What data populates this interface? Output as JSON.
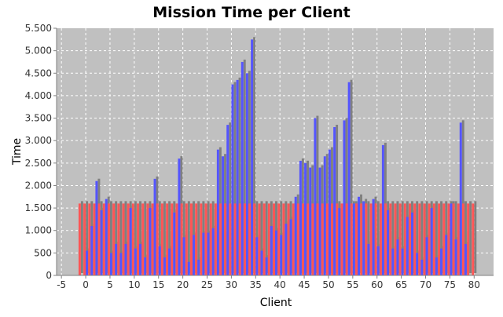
{
  "chart_data": {
    "type": "bar",
    "title": "Mission Time per Client",
    "xlabel": "Client",
    "ylabel": "Time",
    "x_range": [
      -6,
      84
    ],
    "ylim": [
      0,
      5500
    ],
    "x_ticks": [
      -5,
      0,
      5,
      10,
      15,
      20,
      25,
      30,
      35,
      40,
      45,
      50,
      55,
      60,
      65,
      70,
      75,
      80
    ],
    "x_tick_labels": [
      "-5",
      "0",
      "5",
      "10",
      "15",
      "20",
      "25",
      "30",
      "35",
      "40",
      "45",
      "50",
      "55",
      "60",
      "65",
      "70",
      "75",
      "80"
    ],
    "y_ticks": [
      0,
      500,
      1000,
      1500,
      2000,
      2500,
      3000,
      3500,
      4000,
      4500,
      5000,
      5500
    ],
    "y_tick_labels": [
      "0",
      "500",
      "1.000",
      "1.500",
      "2.000",
      "2.500",
      "3.000",
      "3.500",
      "4.000",
      "4.500",
      "5.000",
      "5.500"
    ],
    "grid": true,
    "legend": "none",
    "colors": {
      "plot_bg": "#c0c0c0",
      "series_red": "#ff5555",
      "series_blue": "#5555ff",
      "shadow": "#808080",
      "grid": "#ffffff"
    },
    "x": [
      -1,
      0,
      1,
      2,
      3,
      4,
      5,
      6,
      7,
      8,
      9,
      10,
      11,
      12,
      13,
      14,
      15,
      16,
      17,
      18,
      19,
      20,
      21,
      22,
      23,
      24,
      25,
      26,
      27,
      28,
      29,
      30,
      31,
      32,
      33,
      34,
      35,
      36,
      37,
      38,
      39,
      40,
      41,
      42,
      43,
      44,
      45,
      46,
      47,
      48,
      49,
      50,
      51,
      52,
      53,
      54,
      55,
      56,
      57,
      58,
      59,
      60,
      61,
      62,
      63,
      64,
      65,
      66,
      67,
      68,
      69,
      70,
      71,
      72,
      73,
      74,
      75,
      76,
      77,
      78,
      79,
      80
    ],
    "series": [
      {
        "color": "#ff5555",
        "values": [
          1600,
          1600,
          1600,
          1600,
          1600,
          1600,
          1600,
          1600,
          1600,
          1600,
          1600,
          1600,
          1600,
          1600,
          1600,
          1600,
          1600,
          1600,
          1600,
          1600,
          1600,
          1600,
          1600,
          1600,
          1600,
          1600,
          1600,
          1600,
          1600,
          1600,
          1600,
          1600,
          1600,
          1600,
          1600,
          1600,
          1600,
          1600,
          1600,
          1600,
          1600,
          1600,
          1600,
          1600,
          1600,
          1600,
          1600,
          1600,
          1600,
          1600,
          1600,
          1600,
          1600,
          1600,
          1600,
          1600,
          1600,
          1600,
          1600,
          1600,
          1600,
          1600,
          1600,
          1600,
          1600,
          1600,
          1600,
          1600,
          1600,
          1600,
          1600,
          1600,
          1600,
          1600,
          1600,
          1600,
          1600,
          1600,
          1600,
          1600,
          1600,
          1600
        ]
      },
      {
        "color": "#5555ff",
        "values": [
          0,
          550,
          1100,
          2100,
          1450,
          1700,
          500,
          700,
          500,
          700,
          1500,
          600,
          700,
          400,
          1500,
          2150,
          650,
          400,
          600,
          1400,
          2600,
          850,
          300,
          900,
          350,
          950,
          950,
          1050,
          2800,
          2650,
          3350,
          4250,
          4350,
          4750,
          4500,
          5250,
          850,
          550,
          400,
          1100,
          1000,
          900,
          1150,
          1250,
          1750,
          2550,
          2500,
          2400,
          3500,
          2400,
          2650,
          2800,
          3300,
          1500,
          3450,
          4300,
          1600,
          1750,
          1650,
          700,
          1700,
          650,
          2900,
          1450,
          600,
          800,
          600,
          1300,
          1400,
          500,
          350,
          850,
          1500,
          400,
          600,
          900,
          1600,
          800,
          3400,
          700,
          0,
          0
        ]
      }
    ]
  }
}
